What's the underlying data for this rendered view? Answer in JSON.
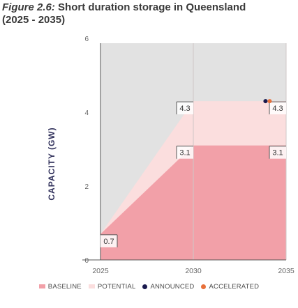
{
  "header": {
    "figure_label": "Figure 2.6:",
    "title_text": "Short duration storage in Queensland",
    "subtitle": "(2025 - 2035)"
  },
  "chart_data": {
    "type": "area",
    "ylabel": "CAPACITY (GW)",
    "xlabel": "",
    "x_ticks": [
      "2025",
      "2030",
      "2035"
    ],
    "y_ticks": [
      "0",
      "2",
      "4",
      "6"
    ],
    "ylim": [
      0,
      6.5
    ],
    "grid": false,
    "legend_position": "bottom",
    "series": [
      {
        "name": "BASELINE",
        "type": "area",
        "color": "#f2a0a8",
        "points": [
          {
            "x": 2025,
            "y": 0.7
          },
          {
            "x": 2030,
            "y": 3.1
          },
          {
            "x": 2035,
            "y": 3.1
          }
        ]
      },
      {
        "name": "POTENTIAL",
        "type": "area",
        "color": "#fbdede",
        "points": [
          {
            "x": 2025,
            "y": 0.7
          },
          {
            "x": 2030,
            "y": 4.3
          },
          {
            "x": 2035,
            "y": 4.3
          }
        ]
      },
      {
        "name": "ANNOUNCED",
        "type": "point",
        "color": "#1a1a4e",
        "points": [
          {
            "x": 2034,
            "y": 4.3
          }
        ]
      },
      {
        "name": "ACCELERATED",
        "type": "point",
        "color": "#e8703a",
        "points": [
          {
            "x": 2034,
            "y": 4.3
          }
        ]
      }
    ],
    "annotations": [
      {
        "x": 2025,
        "y": 0.7,
        "text": "0.7"
      },
      {
        "x": 2030,
        "y": 4.3,
        "text": "4.3"
      },
      {
        "x": 2030,
        "y": 3.1,
        "text": "3.1"
      },
      {
        "x": 2035,
        "y": 4.3,
        "text": "4.3"
      },
      {
        "x": 2035,
        "y": 3.1,
        "text": "3.1"
      }
    ]
  },
  "colors": {
    "plot_background": "#e2e2e2",
    "axis": "#555555",
    "divider": "#d8c0c0"
  }
}
